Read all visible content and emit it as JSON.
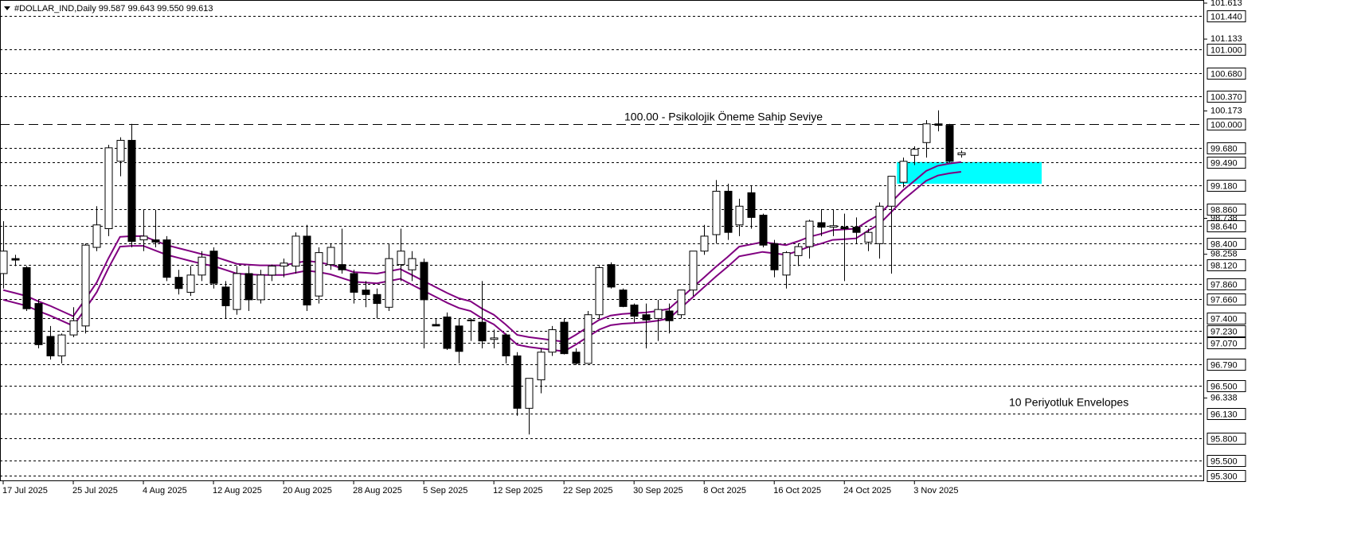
{
  "chart_data": {
    "type": "candlestick",
    "title": "#DOLLAR_IND,Daily  99.587 99.643 99.550 99.613",
    "categories": [
      "17 Jul 2025",
      null,
      null,
      null,
      null,
      null,
      "25 Jul 2025",
      null,
      null,
      null,
      null,
      null,
      "4 Aug 2025",
      null,
      null,
      null,
      null,
      null,
      "12 Aug 2025",
      null,
      null,
      null,
      null,
      null,
      "20 Aug 2025",
      null,
      null,
      null,
      null,
      null,
      "28 Aug 2025",
      null,
      null,
      null,
      null,
      null,
      "5 Sep 2025",
      null,
      null,
      null,
      null,
      null,
      "12 Sep 2025",
      null,
      null,
      null,
      null,
      null,
      "22 Sep 2025",
      null,
      null,
      null,
      null,
      null,
      "30 Sep 2025",
      null,
      null,
      null,
      null,
      null,
      "8 Oct 2025",
      null,
      null,
      null,
      null,
      null,
      "16 Oct 2025",
      null,
      null,
      null,
      null,
      null,
      "24 Oct 2025",
      null,
      null,
      null,
      null,
      null,
      "3 Nov 2025",
      null,
      null,
      null,
      null
    ],
    "open": [
      98.0,
      98.2,
      98.08,
      97.6,
      97.16,
      96.9,
      97.18,
      97.3,
      98.35,
      98.6,
      99.5,
      99.78,
      98.45,
      98.45,
      98.45,
      97.95,
      97.75,
      97.98,
      98.3,
      97.82,
      97.52,
      98.0,
      97.65,
      97.98,
      98.1,
      98.1,
      98.5,
      97.7,
      98.12,
      98.12,
      98.0,
      97.78,
      97.72,
      97.55,
      98.12,
      98.05,
      98.15,
      97.32,
      97.42,
      97.3,
      97.38,
      97.35,
      97.12,
      97.18,
      96.9,
      96.2,
      96.58,
      96.95,
      97.35,
      96.95,
      96.8,
      97.45,
      98.12,
      97.78,
      97.58,
      97.45,
      97.4,
      97.5,
      97.45,
      97.78,
      98.3,
      98.52,
      99.1,
      98.65,
      99.08,
      98.78,
      98.4,
      97.98,
      98.24,
      98.36,
      98.68,
      98.62,
      98.62,
      98.62,
      98.42,
      98.4,
      98.9,
      99.22,
      99.58,
      99.75,
      100.0,
      99.98,
      99.587
    ],
    "high": [
      98.7,
      98.25,
      98.1,
      97.65,
      97.3,
      97.2,
      97.55,
      98.4,
      98.9,
      99.72,
      99.82,
      100.0,
      98.85,
      98.85,
      98.5,
      98.05,
      98.1,
      98.3,
      98.35,
      97.9,
      98.1,
      98.1,
      98.05,
      98.12,
      98.2,
      98.55,
      98.65,
      98.35,
      98.4,
      98.6,
      98.05,
      97.9,
      97.8,
      98.4,
      98.6,
      98.3,
      98.2,
      97.4,
      97.48,
      97.4,
      97.4,
      97.9,
      97.25,
      97.2,
      96.95,
      96.6,
      97.0,
      97.3,
      97.4,
      97.0,
      97.5,
      98.1,
      98.15,
      97.8,
      97.6,
      97.6,
      97.65,
      97.6,
      97.75,
      98.3,
      98.65,
      99.25,
      99.2,
      99.0,
      99.18,
      98.8,
      98.45,
      98.3,
      98.4,
      98.72,
      98.86,
      98.85,
      98.8,
      98.75,
      98.6,
      98.95,
      99.3,
      99.55,
      99.7,
      100.05,
      100.18,
      100.0,
      99.643
    ],
    "low": [
      97.8,
      98.1,
      97.5,
      97.0,
      96.85,
      96.8,
      97.15,
      97.2,
      98.3,
      98.5,
      99.3,
      98.35,
      98.3,
      98.35,
      97.9,
      97.72,
      97.7,
      97.9,
      97.8,
      97.4,
      97.45,
      97.5,
      97.6,
      97.9,
      97.95,
      98.0,
      97.5,
      97.6,
      98.05,
      98.0,
      97.6,
      97.55,
      97.4,
      97.5,
      97.9,
      97.9,
      97.0,
      97.3,
      96.98,
      96.8,
      97.1,
      97.0,
      97.0,
      96.8,
      96.1,
      95.85,
      96.4,
      96.9,
      96.92,
      96.78,
      96.8,
      97.4,
      97.8,
      97.55,
      97.35,
      97.0,
      97.1,
      97.2,
      97.4,
      97.7,
      98.25,
      98.4,
      98.45,
      98.5,
      98.6,
      98.35,
      97.95,
      97.8,
      98.1,
      98.2,
      98.5,
      98.5,
      97.9,
      98.4,
      98.3,
      98.2,
      98.0,
      99.15,
      99.45,
      99.55,
      99.9,
      99.48,
      99.55
    ],
    "close": [
      98.3,
      98.18,
      97.53,
      97.05,
      96.9,
      97.18,
      97.37,
      98.38,
      98.65,
      99.68,
      99.78,
      98.43,
      98.5,
      98.42,
      97.95,
      97.8,
      97.98,
      98.22,
      97.87,
      97.57,
      98.0,
      97.65,
      97.98,
      98.1,
      98.14,
      98.5,
      97.58,
      98.28,
      98.35,
      98.05,
      97.75,
      97.72,
      97.6,
      98.2,
      98.3,
      98.2,
      97.65,
      97.3,
      97.0,
      96.96,
      97.38,
      97.1,
      97.14,
      96.9,
      96.2,
      96.6,
      96.95,
      97.25,
      96.93,
      96.8,
      97.45,
      98.08,
      97.82,
      97.56,
      97.43,
      97.38,
      97.52,
      97.37,
      97.78,
      98.3,
      98.5,
      99.1,
      98.55,
      98.9,
      98.75,
      98.38,
      98.05,
      98.28,
      98.36,
      98.7,
      98.62,
      98.64,
      98.6,
      98.55,
      98.55,
      98.9,
      99.3,
      99.5,
      99.66,
      100.0,
      99.98,
      99.5,
      99.613
    ],
    "envelopes": {
      "color": "#800080",
      "upper": [
        97.78,
        97.74,
        97.7,
        97.63,
        97.57,
        97.5,
        97.43,
        97.65,
        97.88,
        98.2,
        98.49,
        98.5,
        98.5,
        98.44,
        98.38,
        98.34,
        98.3,
        98.26,
        98.23,
        98.18,
        98.13,
        98.12,
        98.11,
        98.11,
        98.11,
        98.14,
        98.17,
        98.15,
        98.12,
        98.07,
        98.02,
        98.01,
        98.0,
        98.03,
        98.06,
        97.98,
        97.9,
        97.82,
        97.74,
        97.67,
        97.63,
        97.53,
        97.45,
        97.32,
        97.18,
        97.15,
        97.13,
        97.11,
        97.09,
        97.18,
        97.28,
        97.38,
        97.44,
        97.46,
        97.47,
        97.48,
        97.5,
        97.53,
        97.67,
        97.81,
        97.95,
        98.09,
        98.22,
        98.36,
        98.39,
        98.42,
        98.4,
        98.38,
        98.43,
        98.49,
        98.53,
        98.58,
        98.59,
        98.6,
        98.7,
        98.79,
        98.95,
        99.11,
        99.24,
        99.37,
        99.44,
        99.47,
        99.49
      ],
      "lower": [
        97.65,
        97.61,
        97.57,
        97.5,
        97.44,
        97.37,
        97.3,
        97.52,
        97.75,
        98.07,
        98.36,
        98.37,
        98.37,
        98.31,
        98.25,
        98.21,
        98.17,
        98.13,
        98.1,
        98.05,
        98.0,
        97.99,
        97.98,
        97.98,
        97.98,
        98.01,
        98.04,
        98.02,
        97.99,
        97.94,
        97.89,
        97.88,
        97.87,
        97.9,
        97.93,
        97.85,
        97.77,
        97.69,
        97.61,
        97.54,
        97.5,
        97.4,
        97.32,
        97.19,
        97.05,
        97.02,
        97.0,
        96.98,
        96.96,
        97.05,
        97.15,
        97.25,
        97.31,
        97.33,
        97.34,
        97.35,
        97.37,
        97.4,
        97.54,
        97.68,
        97.82,
        97.96,
        98.09,
        98.23,
        98.26,
        98.29,
        98.27,
        98.25,
        98.3,
        98.36,
        98.4,
        98.45,
        98.46,
        98.47,
        98.57,
        98.66,
        98.82,
        98.98,
        99.11,
        99.24,
        99.31,
        99.34,
        99.36
      ]
    },
    "zone": {
      "from": 99.2,
      "to": 99.49,
      "color": "#00ffff"
    },
    "ylim": [
      95.226,
      101.655
    ],
    "yticks": [
      101.613,
      101.133,
      100.173,
      98.738,
      98.258,
      96.338
    ],
    "levels": [
      {
        "value": 101.44,
        "label": "101.440"
      },
      {
        "value": 101,
        "label": "101.000"
      },
      {
        "value": 100.68,
        "label": "100.680"
      },
      {
        "value": 100.37,
        "label": "100.370"
      },
      {
        "value": 100,
        "label": "100.000",
        "dash": "long"
      },
      {
        "value": 99.68,
        "label": "99.680"
      },
      {
        "value": 99.49,
        "label": "99.490"
      },
      {
        "value": 99.18,
        "label": "99.180"
      },
      {
        "value": 98.86,
        "label": "98.860"
      },
      {
        "value": 98.64,
        "label": "98.640"
      },
      {
        "value": 98.4,
        "label": "98.400"
      },
      {
        "value": 98.12,
        "label": "98.120"
      },
      {
        "value": 97.86,
        "label": "97.860"
      },
      {
        "value": 97.66,
        "label": "97.660"
      },
      {
        "value": 97.4,
        "label": "97.400"
      },
      {
        "value": 97.23,
        "label": "97.230"
      },
      {
        "value": 97.07,
        "label": "97.070"
      },
      {
        "value": 96.79,
        "label": "96.790"
      },
      {
        "value": 96.5,
        "label": "96.500"
      },
      {
        "value": 96.13,
        "label": "96.130"
      },
      {
        "value": 95.8,
        "label": "95.800"
      },
      {
        "value": 95.5,
        "label": "95.500"
      },
      {
        "value": 95.3,
        "label": "95.300"
      }
    ],
    "annotations": [
      {
        "text": "100.00 -  Psikolojik Öneme Sahip Seviye",
        "color": "#2e9b2e"
      },
      {
        "text": "10 Periyotluk Envelopes",
        "color": "#4b3fa8"
      }
    ]
  }
}
